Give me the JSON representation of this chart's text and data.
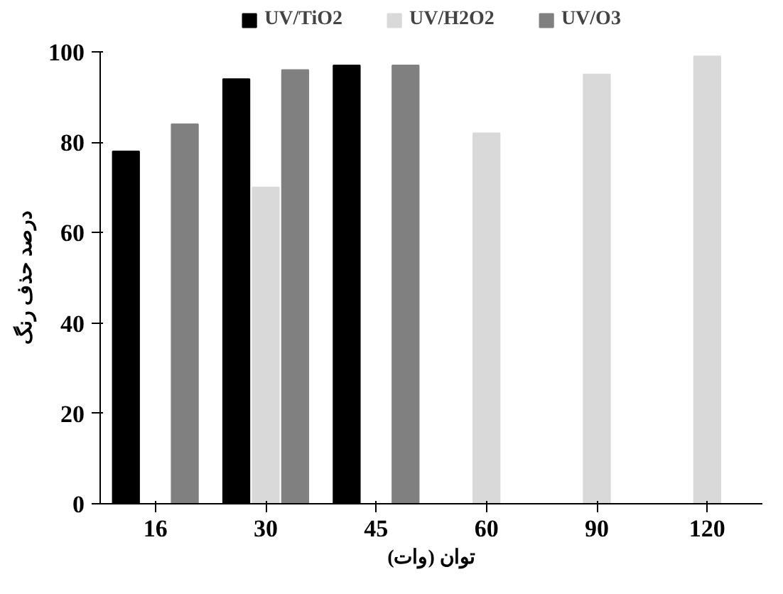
{
  "chart_data": {
    "type": "bar",
    "xlabel": "توان (وات)",
    "ylabel": "درصد حذف رنگ",
    "categories": [
      "16",
      "30",
      "45",
      "60",
      "90",
      "120"
    ],
    "series": [
      {
        "name": "UV/TiO2",
        "color": "#000000",
        "values": [
          78,
          94,
          97,
          null,
          null,
          null
        ]
      },
      {
        "name": "UV/H2O2",
        "color": "#d9d9d9",
        "values": [
          null,
          70,
          null,
          82,
          95,
          99
        ]
      },
      {
        "name": "UV/O3",
        "color": "#808080",
        "values": [
          84,
          96,
          97,
          null,
          null,
          null
        ]
      }
    ],
    "ylim": [
      0,
      100
    ],
    "yticks": [
      0,
      20,
      40,
      60,
      80,
      100
    ],
    "grid": false,
    "legend": "top"
  }
}
